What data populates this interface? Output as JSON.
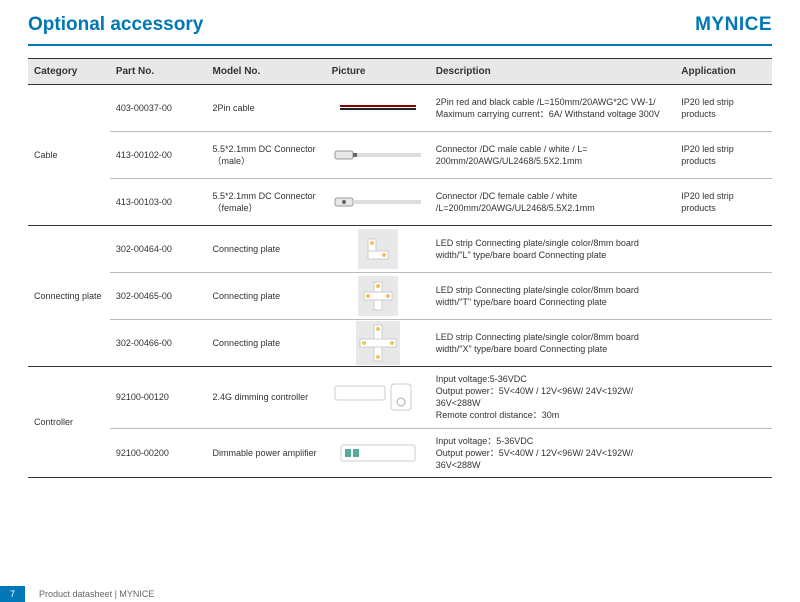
{
  "header": {
    "title": "Optional accessory",
    "brand": "MYNICE"
  },
  "footer": {
    "page": "7",
    "text": "Product datasheet | MYNICE"
  },
  "columns": [
    "Category",
    "Part No.",
    "Model No.",
    "Picture",
    "Description",
    "Application"
  ],
  "colWidths": [
    "11%",
    "13%",
    "16%",
    "14%",
    "33%",
    "13%"
  ],
  "colors": {
    "accent": "#0077b6",
    "header_bg": "#e8e8e8",
    "border_dark": "#333333",
    "border_light": "#bbbbbb"
  },
  "groups": [
    {
      "category": "Cable",
      "rows": [
        {
          "part": "403-00037-00",
          "model": "2Pin cable",
          "desc": "2Pin red and black cable /L=150mm/20AWG*2C VW-1/ Maximum carrying current：6A/ Withstand voltage 300V",
          "app": "IP20 led strip products",
          "icon": "cable-2pin"
        },
        {
          "part": "413-00102-00",
          "model": "5.5*2.1mm DC Connector（male）",
          "desc": "Connector /DC male cable / white / L= 200mm/20AWG/UL2468/5.5X2.1mm",
          "app": "IP20 led strip products",
          "icon": "dc-male"
        },
        {
          "part": "413-00103-00",
          "model": "5.5*2.1mm DC Connector（female）",
          "desc": "Connector /DC female cable / white /L=200mm/20AWG/UL2468/5.5X2.1mm",
          "app": "IP20 led strip products",
          "icon": "dc-female"
        }
      ]
    },
    {
      "category": "Connecting plate",
      "rows": [
        {
          "part": "302-00464-00",
          "model": "Connecting plate",
          "desc": "LED strip Connecting plate/single color/8mm board width/\"L\" type/bare board Connecting plate",
          "app": "",
          "icon": "plate-l"
        },
        {
          "part": "302-00465-00",
          "model": "Connecting plate",
          "desc": "LED strip Connecting plate/single color/8mm board width/\"T\" type/bare board Connecting plate",
          "app": "",
          "icon": "plate-t"
        },
        {
          "part": "302-00466-00",
          "model": "Connecting plate",
          "desc": "LED strip Connecting plate/single color/8mm board width/\"X\" type/bare board Connecting plate",
          "app": "",
          "icon": "plate-x"
        }
      ]
    },
    {
      "category": "Controller",
      "rows": [
        {
          "part": "92100-00120",
          "model": "2.4G dimming controller",
          "desc": "Input voltage:5-36VDC\nOutput power：5V<40W / 12V<96W/ 24V<192W/ 36V<288W\nRemote control distance：30m",
          "app": "",
          "icon": "controller"
        },
        {
          "part": "92100-00200",
          "model": "Dimmable power amplifier",
          "desc": "Input voltage：5-36VDC\nOutput power：5V<40W / 12V<96W/ 24V<192W/ 36V<288W",
          "app": "",
          "icon": "amplifier"
        }
      ]
    }
  ]
}
